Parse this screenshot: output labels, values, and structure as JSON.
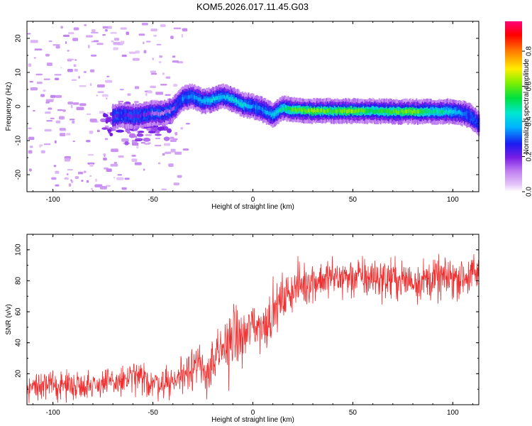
{
  "title": "KOM5.2026.017.11.45.G03",
  "chart_data": [
    {
      "type": "heatmap",
      "name": "spectrogram",
      "xlabel": "Height of straight line (km)",
      "ylabel": "Frequency (Hz)",
      "xlim": [
        -113,
        113
      ],
      "ylim": [
        -25,
        25
      ],
      "xticks": [
        -100,
        -50,
        0,
        50,
        100
      ],
      "yticks": [
        -20,
        -10,
        0,
        10,
        20
      ],
      "colorbar": {
        "label": "Normalized spectral amplitude",
        "range": [
          0.0,
          0.97
        ],
        "ticks": [
          0.0,
          0.2,
          0.4,
          0.6,
          0.8
        ]
      },
      "ridge": {
        "x": [
          -70,
          -65,
          -60,
          -55,
          -50,
          -45,
          -40,
          -35,
          -30,
          -25,
          -20,
          -15,
          -10,
          -5,
          0,
          5,
          10,
          15,
          20,
          30,
          40,
          50,
          60,
          70,
          80,
          90,
          95,
          100,
          105,
          108,
          111,
          113
        ],
        "y": [
          -3,
          -2.5,
          -3,
          -2.5,
          -2,
          -2,
          -1,
          2.5,
          3,
          1.5,
          2,
          3,
          2,
          0.5,
          0,
          -1,
          -2.5,
          -0.5,
          -1,
          -1.3,
          -1.3,
          -1.3,
          -1.3,
          -1.5,
          -1.5,
          -1.5,
          -1.5,
          -1.5,
          -2,
          -2.5,
          -4,
          -5
        ],
        "amplitude": [
          0.2,
          0.25,
          0.2,
          0.22,
          0.15,
          0.12,
          0.15,
          0.35,
          0.35,
          0.4,
          0.45,
          0.4,
          0.45,
          0.45,
          0.35,
          0.35,
          0.4,
          0.5,
          0.6,
          0.65,
          0.6,
          0.65,
          0.55,
          0.6,
          0.65,
          0.5,
          0.5,
          0.45,
          0.35,
          0.3,
          0.3,
          0.3
        ]
      }
    },
    {
      "type": "line",
      "name": "snr",
      "xlabel": "Height of straight line (km)",
      "ylabel": "SNR (v/v)",
      "xlim": [
        -113,
        113
      ],
      "ylim": [
        0,
        110
      ],
      "xticks": [
        -100,
        -50,
        0,
        50,
        100
      ],
      "yticks": [
        20,
        40,
        60,
        80,
        100
      ],
      "color": "#f03030",
      "trend": {
        "x": [
          -113,
          -80,
          -65,
          -60,
          -50,
          -40,
          -35,
          -30,
          -25,
          -20,
          -15,
          -10,
          -5,
          0,
          5,
          10,
          15,
          20,
          25,
          30,
          40,
          60,
          80,
          100,
          113
        ],
        "mean": [
          12,
          13,
          15,
          18,
          14,
          15,
          20,
          28,
          20,
          25,
          35,
          45,
          42,
          52,
          50,
          60,
          68,
          75,
          78,
          80,
          82,
          82,
          80,
          82,
          84
        ],
        "spread": [
          8,
          8,
          9,
          10,
          9,
          9,
          12,
          15,
          12,
          15,
          18,
          20,
          15,
          15,
          14,
          14,
          13,
          13,
          12,
          12,
          12,
          12,
          12,
          12,
          12
        ]
      }
    }
  ]
}
